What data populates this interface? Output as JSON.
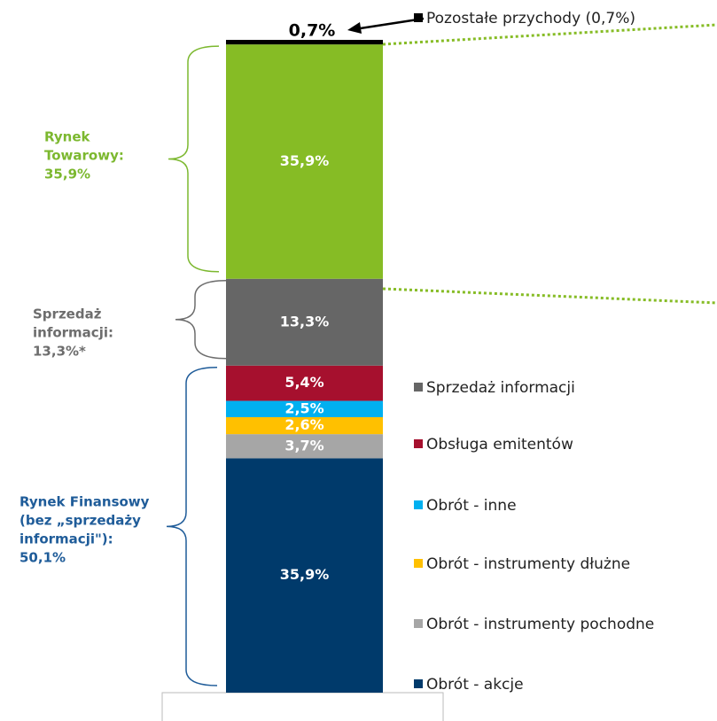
{
  "chart_data": {
    "type": "stacked_bar",
    "ylim": [
      0,
      100
    ],
    "series": [
      {
        "name": "Obrót - akcje",
        "color": "#003a6b",
        "values": [
          35.9
        ],
        "value_labels": [
          "35,9%"
        ]
      },
      {
        "name": "Obrót - instrumenty pochodne",
        "color": "#a6a6a6",
        "values": [
          3.7
        ],
        "value_labels": [
          "3,7%"
        ]
      },
      {
        "name": "Obrót - instrumenty dłużne",
        "color": "#ffc000",
        "values": [
          2.6
        ],
        "value_labels": [
          "2,6%"
        ]
      },
      {
        "name": "Obrót - inne",
        "color": "#00b0f0",
        "values": [
          2.5
        ],
        "value_labels": [
          "2,5%"
        ]
      },
      {
        "name": "Obsługa emitentów",
        "color": "#a6102e",
        "values": [
          5.4
        ],
        "value_labels": [
          "5,4%"
        ]
      },
      {
        "name": "Sprzedaż informacji",
        "color": "#666666",
        "values": [
          13.3
        ],
        "value_labels": [
          "13,3%"
        ]
      },
      {
        "color": "#86bc25",
        "values": [
          35.9
        ],
        "value_labels": [
          "35,9%"
        ]
      },
      {
        "name": "Pozostałe przychody (0,7%)",
        "color": "#000000",
        "values": [
          0.7
        ],
        "value_labels": [
          "0,7%"
        ]
      }
    ],
    "annotations": [
      {
        "lines": [
          "Rynek",
          "Towarowy:",
          "35,9%"
        ],
        "color": "#7cb82f"
      },
      {
        "lines": [
          "Sprzedaż",
          "informacji:",
          "13,3%*"
        ],
        "color": "#6d6d6d"
      },
      {
        "lines": [
          "Rynek Finansowy",
          "(bez „sprzedaży",
          "informacji\"):",
          "50,1%"
        ],
        "color": "#1f5c99"
      }
    ]
  }
}
